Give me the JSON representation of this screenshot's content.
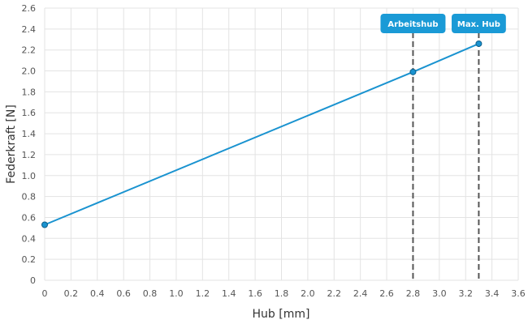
{
  "chart_data": {
    "type": "line",
    "xlabel": "Hub [mm]",
    "ylabel": "Federkraft [N]",
    "xlim": [
      0,
      3.6
    ],
    "ylim": [
      0,
      2.6
    ],
    "x_ticks": [
      "0",
      "0.2",
      "0.4",
      "0.6",
      "0.8",
      "1.0",
      "1.2",
      "1.4",
      "1.6",
      "1.8",
      "2.0",
      "2.2",
      "2.4",
      "2.6",
      "2.8",
      "3.0",
      "3.2",
      "3.4",
      "3.6"
    ],
    "y_ticks": [
      "0",
      "0.2",
      "0.4",
      "0.6",
      "0.8",
      "1.0",
      "1.2",
      "1.4",
      "1.6",
      "1.8",
      "2.0",
      "2.2",
      "2.4",
      "2.6"
    ],
    "grid": true,
    "series": [
      {
        "x": [
          0,
          2.8,
          3.3
        ],
        "y": [
          0.53,
          1.99,
          2.26
        ]
      }
    ],
    "markers": [
      {
        "label": "Arbeitshub",
        "x": 2.8
      },
      {
        "label": "Max. Hub",
        "x": 3.3
      }
    ],
    "colors": {
      "line": "#1a93d0",
      "marker_label_bg": "#1a9ad6",
      "marker_line": "#555555",
      "grid": "#e3e3e3"
    }
  }
}
